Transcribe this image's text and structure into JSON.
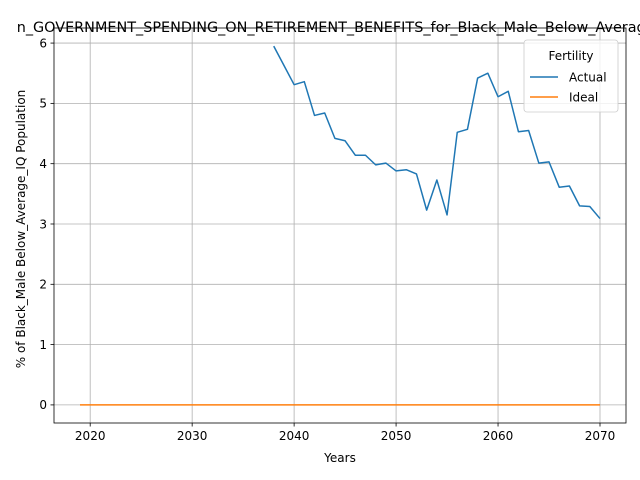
{
  "chart_data": {
    "type": "line",
    "title": "n_GOVERNMENT_SPENDING_ON_RETIREMENT_BENEFITS_for_Black_Male_Below_Average_IQ",
    "xlabel": "Years",
    "ylabel": "% of Black_Male Below_Average_IQ Population",
    "xlim": [
      2016.45,
      2072.55
    ],
    "ylim": [
      -0.3,
      6.25
    ],
    "x_ticks": [
      2020,
      2030,
      2040,
      2050,
      2060,
      2070
    ],
    "y_ticks": [
      0,
      1,
      2,
      3,
      4,
      5,
      6
    ],
    "grid": true,
    "legend": {
      "title": "Fertility",
      "placement": "top-right"
    },
    "series": [
      {
        "name": "Actual",
        "color": "#1f77b4",
        "x": [
          2038,
          2039,
          2040,
          2041,
          2042,
          2043,
          2044,
          2045,
          2046,
          2047,
          2048,
          2049,
          2050,
          2051,
          2052,
          2053,
          2054,
          2055,
          2056,
          2057,
          2058,
          2059,
          2060,
          2061,
          2062,
          2063,
          2064,
          2065,
          2066,
          2067,
          2068,
          2069,
          2070
        ],
        "values": [
          5.95,
          5.63,
          5.31,
          5.36,
          4.8,
          4.84,
          4.42,
          4.38,
          4.14,
          4.14,
          3.98,
          4.01,
          3.88,
          3.9,
          3.83,
          3.23,
          3.73,
          3.15,
          4.52,
          4.57,
          5.42,
          5.5,
          5.11,
          5.2,
          4.53,
          4.55,
          4.01,
          4.03,
          3.61,
          3.63,
          3.3,
          3.29,
          3.09
        ]
      },
      {
        "name": "Ideal",
        "color": "#ff7f0e",
        "x": [
          2019,
          2070
        ],
        "values": [
          0,
          0
        ]
      }
    ]
  }
}
